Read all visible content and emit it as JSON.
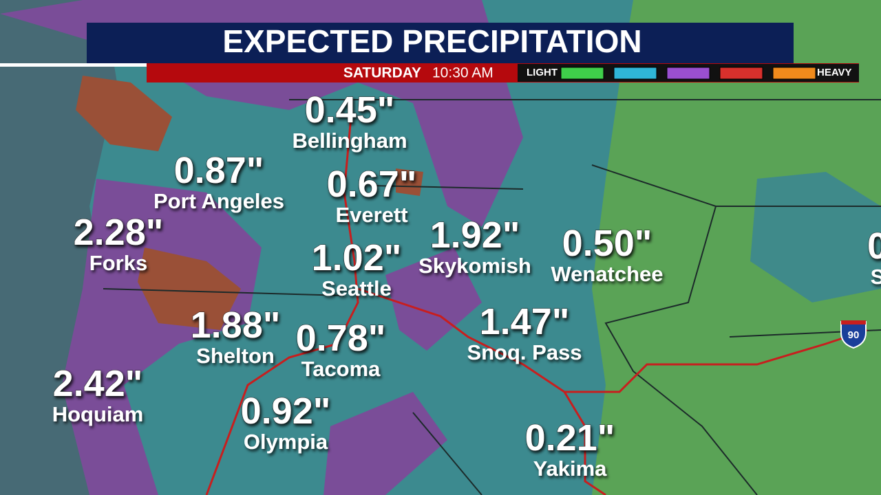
{
  "header": {
    "title": "EXPECTED PRECIPITATION",
    "day": "SATURDAY",
    "time": "10:30 AM"
  },
  "legend": {
    "low": "LIGHT",
    "high": "HEAVY",
    "swatches": [
      "#3fcf4a",
      "#2fb6d8",
      "#9a4fd0",
      "#d8302c",
      "#f08a1c"
    ]
  },
  "shield": "90",
  "cities": [
    {
      "amount": "0.45\"",
      "name": "Bellingham"
    },
    {
      "amount": "0.87\"",
      "name": "Port Angeles"
    },
    {
      "amount": "0.67\"",
      "name": "Everett"
    },
    {
      "amount": "2.28\"",
      "name": "Forks"
    },
    {
      "amount": "1.02\"",
      "name": "Seattle"
    },
    {
      "amount": "1.92\"",
      "name": "Skykomish"
    },
    {
      "amount": "0.50\"",
      "name": "Wenatchee"
    },
    {
      "amount": "1.47\"",
      "name": "Snoq. Pass"
    },
    {
      "amount": "1.88\"",
      "name": "Shelton"
    },
    {
      "amount": "0.78\"",
      "name": "Tacoma"
    },
    {
      "amount": "2.42\"",
      "name": "Hoquiam"
    },
    {
      "amount": "0.92\"",
      "name": "Olympia"
    },
    {
      "amount": "0.21\"",
      "name": "Yakima"
    },
    {
      "amount": "0",
      "name": "S"
    }
  ]
}
